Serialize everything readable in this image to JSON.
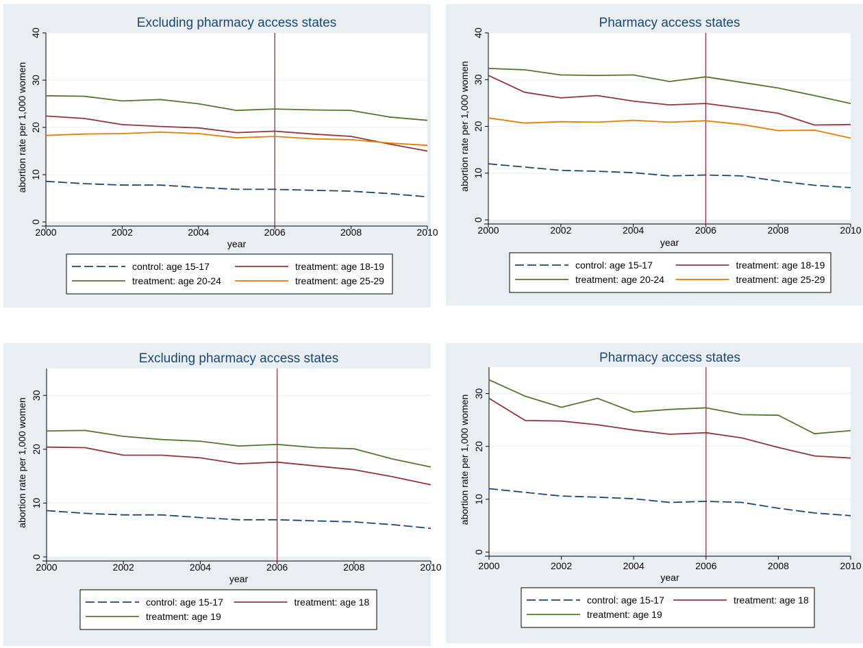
{
  "colors": {
    "panel_bg": "#e9eef3",
    "plot_bg": "#ffffff",
    "grid": "#eaf2f3",
    "vline": "#90353b",
    "control": "#1a476f",
    "treat_a": "#90353b",
    "treat_b": "#55752f",
    "treat_c": "#e37e00"
  },
  "chart_data": [
    {
      "type": "line",
      "title": "Excluding pharmacy access states",
      "xlabel": "year",
      "ylabel": "abortion rate per 1,000 women",
      "xlim": [
        2000,
        2010
      ],
      "ylim": [
        0,
        40
      ],
      "xticks": [
        2000,
        2002,
        2004,
        2006,
        2008,
        2010
      ],
      "yticks": [
        0,
        10,
        20,
        30,
        40
      ],
      "vline": 2006,
      "x": [
        2000,
        2001,
        2002,
        2003,
        2004,
        2005,
        2006,
        2007,
        2008,
        2009,
        2010
      ],
      "series": [
        {
          "name": "control: age 15-17",
          "color": "#1a476f",
          "dash": true,
          "values": [
            8.6,
            8.1,
            7.8,
            7.8,
            7.3,
            6.9,
            6.9,
            6.7,
            6.5,
            6.0,
            5.3
          ]
        },
        {
          "name": "treatment: age 18-19",
          "color": "#90353b",
          "dash": false,
          "values": [
            22.4,
            21.9,
            20.6,
            20.2,
            19.9,
            18.9,
            19.2,
            18.6,
            18.1,
            16.5,
            15.0
          ]
        },
        {
          "name": "treatment: age 20-24",
          "color": "#55752f",
          "dash": false,
          "values": [
            26.7,
            26.6,
            25.6,
            25.9,
            25.0,
            23.6,
            23.9,
            23.7,
            23.6,
            22.2,
            21.5
          ]
        },
        {
          "name": "treatment: age 25-29",
          "color": "#e37e00",
          "dash": false,
          "values": [
            18.3,
            18.6,
            18.7,
            19.0,
            18.7,
            17.8,
            18.1,
            17.6,
            17.4,
            16.7,
            16.2
          ]
        }
      ],
      "legend": {
        "columns": 2,
        "position": "bottom"
      }
    },
    {
      "type": "line",
      "title": "Pharmacy access states",
      "xlabel": "year",
      "ylabel": "abortion rate per 1,000 women",
      "xlim": [
        2000,
        2010
      ],
      "ylim": [
        0,
        40
      ],
      "xticks": [
        2000,
        2002,
        2004,
        2006,
        2008,
        2010
      ],
      "yticks": [
        0,
        10,
        20,
        30,
        40
      ],
      "vline": 2006,
      "x": [
        2000,
        2001,
        2002,
        2003,
        2004,
        2005,
        2006,
        2007,
        2008,
        2009,
        2010
      ],
      "series": [
        {
          "name": "control: age 15-17",
          "color": "#1a476f",
          "dash": true,
          "values": [
            12.0,
            11.3,
            10.6,
            10.4,
            10.1,
            9.4,
            9.6,
            9.4,
            8.3,
            7.4,
            6.9
          ]
        },
        {
          "name": "treatment: age 18-19",
          "color": "#90353b",
          "dash": false,
          "values": [
            30.9,
            27.3,
            26.1,
            26.6,
            25.4,
            24.6,
            24.9,
            23.9,
            22.8,
            20.3,
            20.4
          ]
        },
        {
          "name": "treatment: age 20-24",
          "color": "#55752f",
          "dash": false,
          "values": [
            32.4,
            32.1,
            31.0,
            30.9,
            31.0,
            29.6,
            30.6,
            29.4,
            28.2,
            26.6,
            24.9
          ]
        },
        {
          "name": "treatment: age 25-29",
          "color": "#e37e00",
          "dash": false,
          "values": [
            21.8,
            20.7,
            21.0,
            20.9,
            21.3,
            20.9,
            21.2,
            20.4,
            19.1,
            19.2,
            17.5
          ]
        }
      ],
      "legend": {
        "columns": 2,
        "position": "bottom"
      }
    },
    {
      "type": "line",
      "title": "Excluding pharmacy access states",
      "xlabel": "year",
      "ylabel": "abortion rate per 1,000 women",
      "xlim": [
        2000,
        2010
      ],
      "ylim": [
        0,
        35
      ],
      "xticks": [
        2000,
        2002,
        2004,
        2006,
        2008,
        2010
      ],
      "yticks": [
        0,
        10,
        20,
        30
      ],
      "vline": 2006,
      "x": [
        2000,
        2001,
        2002,
        2003,
        2004,
        2005,
        2006,
        2007,
        2008,
        2009,
        2010
      ],
      "series": [
        {
          "name": "control: age 15-17",
          "color": "#1a476f",
          "dash": true,
          "values": [
            8.6,
            8.1,
            7.8,
            7.8,
            7.3,
            6.9,
            6.9,
            6.7,
            6.5,
            6.0,
            5.3
          ]
        },
        {
          "name": "treatment: age 18",
          "color": "#90353b",
          "dash": false,
          "values": [
            20.4,
            20.3,
            18.9,
            18.9,
            18.4,
            17.3,
            17.6,
            16.9,
            16.2,
            14.9,
            13.4
          ]
        },
        {
          "name": "treatment: age 19",
          "color": "#55752f",
          "dash": false,
          "values": [
            23.4,
            23.5,
            22.4,
            21.8,
            21.5,
            20.6,
            20.9,
            20.3,
            20.1,
            18.2,
            16.7
          ]
        }
      ],
      "legend": {
        "columns": 2,
        "position": "bottom"
      }
    },
    {
      "type": "line",
      "title": "Pharmacy access states",
      "xlabel": "year",
      "ylabel": "abortion rate per 1,000 women",
      "xlim": [
        2000,
        2010
      ],
      "ylim": [
        0,
        35
      ],
      "xticks": [
        2000,
        2002,
        2004,
        2006,
        2008,
        2010
      ],
      "yticks": [
        0,
        10,
        20,
        30
      ],
      "vline": 2006,
      "x": [
        2000,
        2001,
        2002,
        2003,
        2004,
        2005,
        2006,
        2007,
        2008,
        2009,
        2010
      ],
      "series": [
        {
          "name": "control: age 15-17",
          "color": "#1a476f",
          "dash": true,
          "values": [
            12.0,
            11.3,
            10.6,
            10.4,
            10.1,
            9.4,
            9.6,
            9.4,
            8.3,
            7.4,
            6.9
          ]
        },
        {
          "name": "treatment: age 18",
          "color": "#90353b",
          "dash": false,
          "values": [
            29.1,
            24.9,
            24.8,
            24.1,
            23.1,
            22.3,
            22.6,
            21.6,
            19.8,
            18.2,
            17.8
          ]
        },
        {
          "name": "treatment: age 19",
          "color": "#55752f",
          "dash": false,
          "values": [
            32.6,
            29.5,
            27.4,
            29.1,
            26.5,
            27.0,
            27.3,
            26.0,
            25.9,
            22.4,
            23.0
          ]
        }
      ],
      "legend": {
        "columns": 2,
        "position": "bottom"
      }
    }
  ]
}
